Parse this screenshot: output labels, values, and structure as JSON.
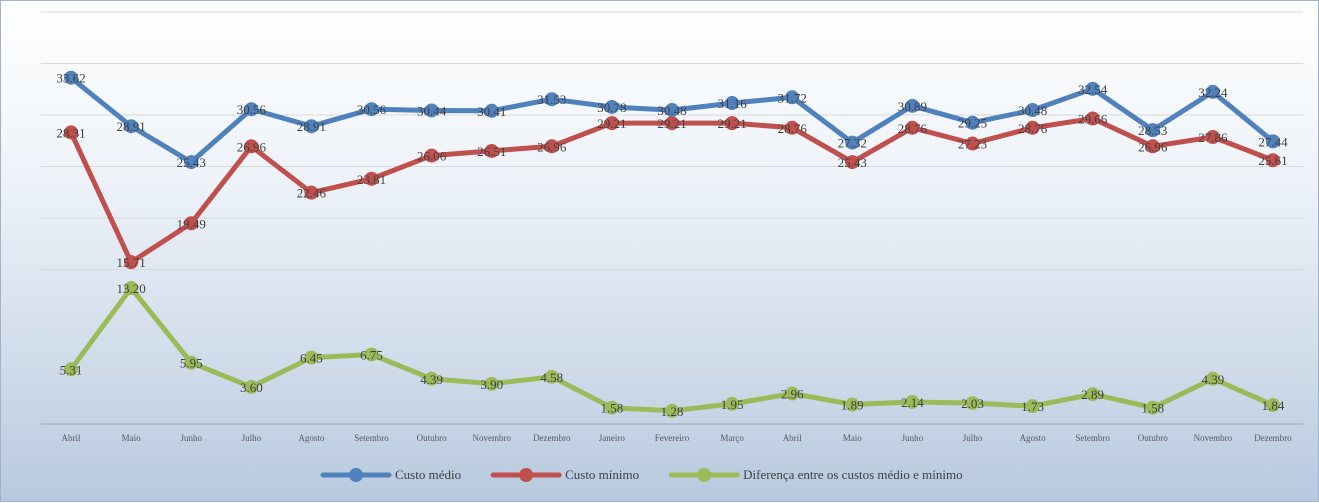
{
  "chart_data": {
    "type": "line",
    "categories": [
      "Abril",
      "Maio",
      "Junho",
      "Julho",
      "Agosto",
      "Setembro",
      "Outubro",
      "Novembro",
      "Dezembro",
      "Janeiro",
      "Fevereiro",
      "Março",
      "Abril",
      "Maio",
      "Junho",
      "Julho",
      "Agosto",
      "Setembro",
      "Outubro",
      "Novembro",
      "Dezembro"
    ],
    "series": [
      {
        "name": "Custo médio",
        "color": "#4f81bd",
        "values": [
          33.62,
          28.91,
          25.43,
          30.56,
          28.91,
          30.56,
          30.44,
          30.41,
          31.53,
          30.78,
          30.48,
          31.16,
          31.72,
          27.32,
          30.89,
          29.25,
          30.48,
          32.54,
          28.53,
          32.24,
          27.44
        ],
        "labels": [
          "33.62",
          "28.91",
          "25.43",
          "30.56",
          "28.91",
          "30.56",
          "30.44",
          "30.41",
          "31.53",
          "30.78",
          "30.48",
          "31.16",
          "31.72",
          "27.32",
          "30.89",
          "29.25",
          "30.48",
          "32.54",
          "28.53",
          "32.24",
          "27.44"
        ]
      },
      {
        "name": "Custo mínimo",
        "color": "#c0504d",
        "values": [
          28.31,
          15.71,
          19.49,
          26.96,
          22.46,
          23.81,
          26.06,
          26.51,
          26.96,
          29.21,
          29.21,
          29.21,
          28.76,
          25.43,
          28.76,
          27.23,
          28.76,
          29.66,
          26.96,
          27.86,
          25.61
        ],
        "labels": [
          "28.31",
          "15.71",
          "19.49",
          "26.96",
          "22.46",
          "23.81",
          "26.06",
          "26.51",
          "26.96",
          "29.21",
          "29.21",
          "29.21",
          "28.76",
          "25.43",
          "28.76",
          "27.23",
          "28.76",
          "29.66",
          "26.96",
          "27.86",
          "25.61"
        ]
      },
      {
        "name": "Diferença entre os custos médio e mínimo",
        "color": "#9bbb59",
        "values": [
          5.31,
          13.2,
          5.95,
          3.6,
          6.45,
          6.75,
          4.39,
          3.9,
          4.58,
          1.58,
          1.28,
          1.95,
          2.96,
          1.89,
          2.14,
          2.03,
          1.73,
          2.89,
          1.58,
          4.39,
          1.84
        ],
        "labels": [
          "5.31",
          "13.20",
          "5.95",
          "3.60",
          "6.45",
          "6.75",
          "4.39",
          "3.90",
          "4.58",
          "1.58",
          "1.28",
          "1.95",
          "2.96",
          "1.89",
          "2.14",
          "2.03",
          "1.73",
          "2.89",
          "1.58",
          "4.39",
          "1.84"
        ]
      }
    ],
    "ylim": [
      0,
      40
    ],
    "ytick_step": 5,
    "grid": true,
    "legend_position": "bottom",
    "title": "",
    "xlabel": "",
    "ylabel": ""
  }
}
